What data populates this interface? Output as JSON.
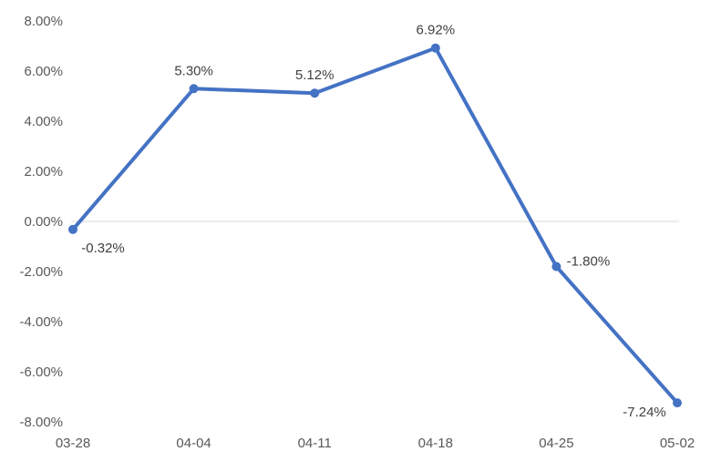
{
  "chart_data": {
    "type": "line",
    "title": "",
    "xlabel": "",
    "ylabel": "",
    "categories": [
      "03-28",
      "04-04",
      "04-11",
      "04-18",
      "04-25",
      "05-02"
    ],
    "series": [
      {
        "values": [
          -0.32,
          5.3,
          5.12,
          6.92,
          -1.8,
          -7.24
        ],
        "data_labels": [
          "-0.32%",
          "5.30%",
          "5.12%",
          "6.92%",
          "-1.80%",
          "-7.24%"
        ],
        "color": "#4472C4"
      }
    ],
    "ylim": [
      -8,
      8
    ],
    "yticks": [
      8,
      6,
      4,
      2,
      0,
      -2,
      -4,
      -6,
      -8
    ],
    "ytick_labels": [
      "8.00%",
      "6.00%",
      "4.00%",
      "2.00%",
      "0.00%",
      "-2.00%",
      "-4.00%",
      "-6.00%",
      "-8.00%"
    ],
    "zero_line": true,
    "grid": false,
    "legend": "none"
  }
}
